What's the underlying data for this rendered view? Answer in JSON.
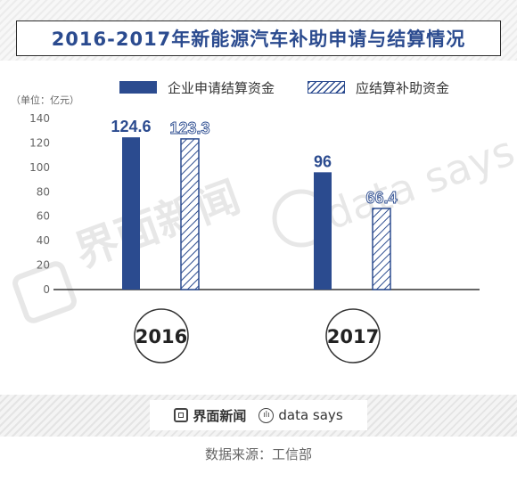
{
  "title": "2016-2017年新能源汽车补助申请与结算情况",
  "unit_label": "（单位：亿元）",
  "legend": [
    {
      "label": "企业申请结算资金",
      "style": "solid"
    },
    {
      "label": "应结算补助资金",
      "style": "hatched"
    }
  ],
  "colors": {
    "primary": "#2b4b8f",
    "axis": "#333333",
    "tick": "#666666"
  },
  "watermark": {
    "left": "界面新闻",
    "right": "data says"
  },
  "footer": {
    "brand_a": "界面新闻",
    "brand_b": "data says"
  },
  "source": "数据来源：工信部",
  "chart_data": {
    "type": "bar",
    "categories": [
      "2016",
      "2017"
    ],
    "series": [
      {
        "name": "企业申请结算资金",
        "values": [
          124.6,
          96
        ],
        "labels": [
          "124.6",
          "96"
        ],
        "style": "solid"
      },
      {
        "name": "应结算补助资金",
        "values": [
          123.3,
          66.4
        ],
        "labels": [
          "123.3",
          "66.4"
        ],
        "style": "hatched"
      }
    ],
    "yticks": [
      0,
      20,
      40,
      60,
      80,
      100,
      120,
      140
    ],
    "ylim": [
      0,
      140
    ],
    "grid": false,
    "legend_position": "top"
  }
}
